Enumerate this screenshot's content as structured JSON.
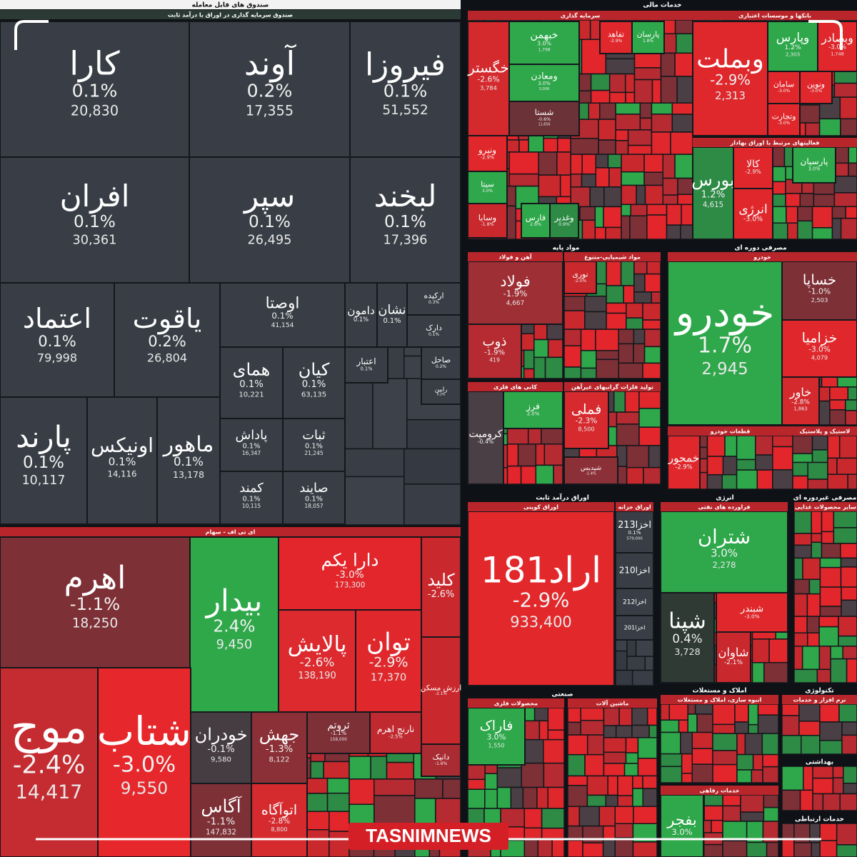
{
  "groups": [
    {
      "title": "صندوق های قابل معامله",
      "sections": [
        {
          "title": "صندوق سرمایه گذاری در اوراق با درآمد ثابت",
          "tiles": [
            {
              "name": "کارا",
              "change": "0.1%",
              "volume": "20,830",
              "color": "#393e46"
            },
            {
              "name": "آوند",
              "change": "0.2%",
              "volume": "17,355",
              "color": "#393e46"
            },
            {
              "name": "فیروزا",
              "change": "0.1%",
              "volume": "51,552",
              "color": "#393e46"
            },
            {
              "name": "افران",
              "change": "0.1%",
              "volume": "30,361",
              "color": "#393e46"
            },
            {
              "name": "سپر",
              "change": "0.1%",
              "volume": "26,495",
              "color": "#393e46"
            },
            {
              "name": "لبخند",
              "change": "0.1%",
              "volume": "17,396",
              "color": "#393e46"
            },
            {
              "name": "اعتماد",
              "change": "0.1%",
              "volume": "79,998",
              "color": "#393e46"
            },
            {
              "name": "یاقوت",
              "change": "0.2%",
              "volume": "26,804",
              "color": "#393e46"
            },
            {
              "name": "اوصتا",
              "change": "0.1%",
              "volume": "41,154",
              "color": "#393e46"
            },
            {
              "name": "همای",
              "change": "0.1%",
              "volume": "10,221",
              "color": "#393e46"
            },
            {
              "name": "کیان",
              "change": "0.1%",
              "volume": "63,135",
              "color": "#393e46"
            },
            {
              "name": "پارند",
              "change": "0.1%",
              "volume": "10,117",
              "color": "#393e46"
            },
            {
              "name": "اونیکس",
              "change": "0.1%",
              "volume": "14,116",
              "color": "#393e46"
            },
            {
              "name": "ماهور",
              "change": "0.1%",
              "volume": "13,178",
              "color": "#393e46"
            },
            {
              "name": "پاداش",
              "change": "0.1%",
              "volume": "16,347",
              "color": "#393e46"
            },
            {
              "name": "ثبات",
              "change": "0.1%",
              "volume": "21,245",
              "color": "#393e46"
            },
            {
              "name": "کمند",
              "change": "0.1%",
              "volume": "10,115",
              "color": "#393e46"
            },
            {
              "name": "صایند",
              "change": "0.1%",
              "volume": "18,057",
              "color": "#393e46"
            },
            {
              "name": "دامون",
              "change": "0.1%",
              "color": "#393e46"
            },
            {
              "name": "نشان",
              "change": "0.1%",
              "color": "#393e46"
            },
            {
              "name": "ارکیده",
              "change": "0.3%",
              "color": "#393e46"
            },
            {
              "name": "دارک",
              "change": "0.1%",
              "color": "#393e46"
            },
            {
              "name": "اعتبار",
              "change": "0.1%",
              "color": "#393e46"
            },
            {
              "name": "صاحل",
              "change": "0.2%",
              "color": "#393e46"
            },
            {
              "name": "رابین",
              "change": "0.2%",
              "color": "#393e46"
            }
          ]
        },
        {
          "title": "ای تی اف - سهام",
          "tiles": [
            {
              "name": "اهرم",
              "change": "-1.1%",
              "volume": "18,250",
              "color": "#7d3036"
            },
            {
              "name": "بیدار",
              "change": "2.4%",
              "volume": "9,450",
              "color": "#2fa84a"
            },
            {
              "name": "دارا یکم",
              "change": "-3.0%",
              "volume": "173,300",
              "color": "#e3262b"
            },
            {
              "name": "پالایش",
              "change": "-2.6%",
              "volume": "138,190",
              "color": "#dc2a2e"
            },
            {
              "name": "توان",
              "change": "-2.9%",
              "volume": "17,370",
              "color": "#e0282c"
            },
            {
              "name": "کلید",
              "change": "-2.6%",
              "color": "#c9282d"
            },
            {
              "name": "ارزش مسکن",
              "change": "-2.1%",
              "color": "#c9282d"
            },
            {
              "name": "موج",
              "change": "-2.4%",
              "volume": "14,417",
              "color": "#c52c31"
            },
            {
              "name": "شتاب",
              "change": "-3.0%",
              "volume": "9,550",
              "color": "#e6272b"
            },
            {
              "name": "خودران",
              "change": "-0.1%",
              "volume": "9,580",
              "color": "#453d42"
            },
            {
              "name": "جهش",
              "change": "-1.3%",
              "volume": "8,122",
              "color": "#8b3037"
            },
            {
              "name": "ثروتم",
              "change": "-1.1%",
              "volume": "158,000",
              "color": "#7d3036"
            },
            {
              "name": "نارنج اهرم",
              "change": "-2.5%",
              "color": "#c0292f"
            },
            {
              "name": "آگاس",
              "change": "-1.1%",
              "volume": "147,832",
              "color": "#7d3036"
            },
            {
              "name": "اتوآگاه",
              "change": "-2.8%",
              "volume": "8,800",
              "color": "#d52a2e"
            },
            {
              "name": "دانیک",
              "change": "-1.6%",
              "color": "#a92c32"
            }
          ]
        }
      ]
    },
    {
      "title": "خدمات مالی",
      "sections": [
        {
          "title": "سرمایه گذاری",
          "tiles": [
            {
              "name": "خگستر",
              "change": "-2.6%",
              "volume": "3,784",
              "color": "#d42a2e"
            },
            {
              "name": "خبهمن",
              "change": "3.0%",
              "volume": "1,798",
              "color": "#2ea84a"
            },
            {
              "name": "ومعادن",
              "change": "3.0%",
              "volume": "3,006",
              "color": "#2ea84a"
            },
            {
              "name": "شستا",
              "change": "-0.6%",
              "volume": "11,656",
              "color": "#6b3237"
            },
            {
              "name": "تفاهد",
              "change": "-2.9%",
              "color": "#e0282c"
            },
            {
              "name": "پارسان",
              "change": "1.8%",
              "color": "#2ea84a"
            },
            {
              "name": "ونیرو",
              "change": "-2.9%",
              "color": "#e0282c"
            },
            {
              "name": "سیتا",
              "change": "3.0%",
              "color": "#2ea84a"
            },
            {
              "name": "وسایا",
              "change": "-1.8%",
              "color": "#c9282d"
            },
            {
              "name": "فارس",
              "change": "2.6%",
              "color": "#2ea84a"
            },
            {
              "name": "وغدیر",
              "change": "0.9%",
              "color": "#2e8b45"
            }
          ]
        },
        {
          "title": "بانکها و موسسات اعتباری",
          "tiles": [
            {
              "name": "وبملت",
              "change": "-2.9%",
              "volume": "2,313",
              "color": "#df282c"
            },
            {
              "name": "وپارس",
              "change": "1.2%",
              "volume": "2,303",
              "color": "#2ea84a"
            },
            {
              "name": "وبصادر",
              "change": "-3.0%",
              "volume": "1,748",
              "color": "#e0282c"
            },
            {
              "name": "سامان",
              "change": "-3.0%",
              "color": "#e0282c"
            },
            {
              "name": "ونوین",
              "change": "-3.0%",
              "color": "#e0282c"
            },
            {
              "name": "وتجارت",
              "change": "-3.0%",
              "color": "#e0282c"
            }
          ]
        },
        {
          "title": "فعالیتهای مرتبط با اوراق بهادار",
          "tiles": [
            {
              "name": "بورس",
              "change": "1.2%",
              "volume": "4,615",
              "color": "#2e8b45"
            },
            {
              "name": "کالا",
              "change": "-2.9%",
              "color": "#e0282c"
            },
            {
              "name": "انرژی",
              "change": "-3.0%",
              "color": "#e0282c"
            },
            {
              "name": "پارسیان",
              "change": "3.0%",
              "color": "#2ea84a"
            }
          ]
        }
      ]
    },
    {
      "title": "مواد پایه",
      "sections": [
        {
          "title": "آهن و فولاد",
          "tiles": [
            {
              "name": "فولاد",
              "change": "-1.9%",
              "volume": "4,667",
              "color": "#9e2f35"
            },
            {
              "name": "ذوب",
              "change": "-1.9%",
              "volume": "419",
              "color": "#b52b31"
            }
          ]
        },
        {
          "title": "مواد شیمیایی-متنوع",
          "tiles": [
            {
              "name": "نوری",
              "change": "-2.0%",
              "color": "#c9282d"
            }
          ]
        },
        {
          "title": "کانی های فلزی",
          "tiles": [
            {
              "name": "کرومیت",
              "change": "-0.4%",
              "color": "#4a3f44"
            },
            {
              "name": "فرز",
              "change": "2.0%",
              "color": "#2ea84a"
            }
          ]
        },
        {
          "title": "تولید فلزات گرانبهای غیرآهن",
          "tiles": [
            {
              "name": "فملی",
              "change": "-2.3%",
              "volume": "8,500",
              "color": "#d62a2e"
            },
            {
              "name": "شپدیس",
              "change": "-1.4%",
              "color": "#8b3037"
            }
          ]
        }
      ]
    },
    {
      "title": "مصرفی دوره ای",
      "sections": [
        {
          "title": "خودرو",
          "tiles": [
            {
              "name": "خودرو",
              "change": "1.7%",
              "volume": "2,945",
              "color": "#2ea84a"
            },
            {
              "name": "خساپا",
              "change": "-1.0%",
              "volume": "2,503",
              "color": "#7d3036"
            },
            {
              "name": "خزامیا",
              "change": "-3.0%",
              "volume": "4,079",
              "color": "#e0282c"
            },
            {
              "name": "خاور",
              "change": "-2.8%",
              "volume": "1,863",
              "color": "#d42a2e"
            }
          ]
        },
        {
          "title": "قطعات خودرو",
          "tiles": [
            {
              "name": "خمحور",
              "change": "-2.9%",
              "color": "#e0282c"
            }
          ]
        },
        {
          "title": "لاستیک و پلاستیک",
          "tiles": []
        }
      ]
    },
    {
      "title": "اوراق درآمد ثابت",
      "sections": [
        {
          "title": "اوراق کوپنی",
          "tiles": [
            {
              "name": "اراد181",
              "change": "-2.9%",
              "volume": "933,400",
              "color": "#e3282c"
            }
          ]
        },
        {
          "title": "اوراق خزانه",
          "tiles": [
            {
              "name": "اخزا213",
              "change": "0.1%",
              "volume": "579,000",
              "color": "#393e46"
            },
            {
              "name": "اخزا210",
              "color": "#393e46"
            },
            {
              "name": "اخزا212",
              "color": "#393e46"
            },
            {
              "name": "اخزا201",
              "color": "#393e46"
            }
          ]
        }
      ]
    },
    {
      "title": "انرژی",
      "sections": [
        {
          "title": "فراورده های نفتی",
          "tiles": [
            {
              "name": "شتران",
              "change": "3.0%",
              "volume": "2,278",
              "color": "#2ea84a"
            },
            {
              "name": "شپنا",
              "change": "0.4%",
              "volume": "3,728",
              "color": "#2e3a33"
            },
            {
              "name": "شبندر",
              "change": "-3.0%",
              "color": "#e0282c"
            },
            {
              "name": "شاوان",
              "change": "-2.1%",
              "color": "#c9282d"
            }
          ]
        }
      ]
    },
    {
      "title": "مصرفی غیردوره ای",
      "sections": [
        {
          "title": "سایر محصولات غذایی",
          "tiles": []
        }
      ]
    },
    {
      "title": "صنعتی",
      "sections": [
        {
          "title": "محصولات فلزی",
          "tiles": [
            {
              "name": "فاراک",
              "change": "3.0%",
              "volume": "1,550",
              "color": "#2ea84a"
            }
          ]
        },
        {
          "title": "ماشین آلات",
          "tiles": []
        }
      ]
    },
    {
      "title": "املاک و مستغلات",
      "sections": [
        {
          "title": "انبوه سازی، املاک و مستغلات",
          "tiles": []
        },
        {
          "title": "خدمات رفاهی",
          "tiles": [
            {
              "name": "بفجر",
              "change": "3.0%",
              "color": "#2ea84a"
            }
          ]
        }
      ]
    },
    {
      "title": "تکنولوژی",
      "sections": [
        {
          "title": "نرم افزار و خدمات",
          "tiles": []
        }
      ]
    },
    {
      "title": "بهداشتی",
      "sections": []
    },
    {
      "title": "خدمات ارتباطی",
      "sections": []
    }
  ],
  "watermark": "TASNIMNEWS"
}
